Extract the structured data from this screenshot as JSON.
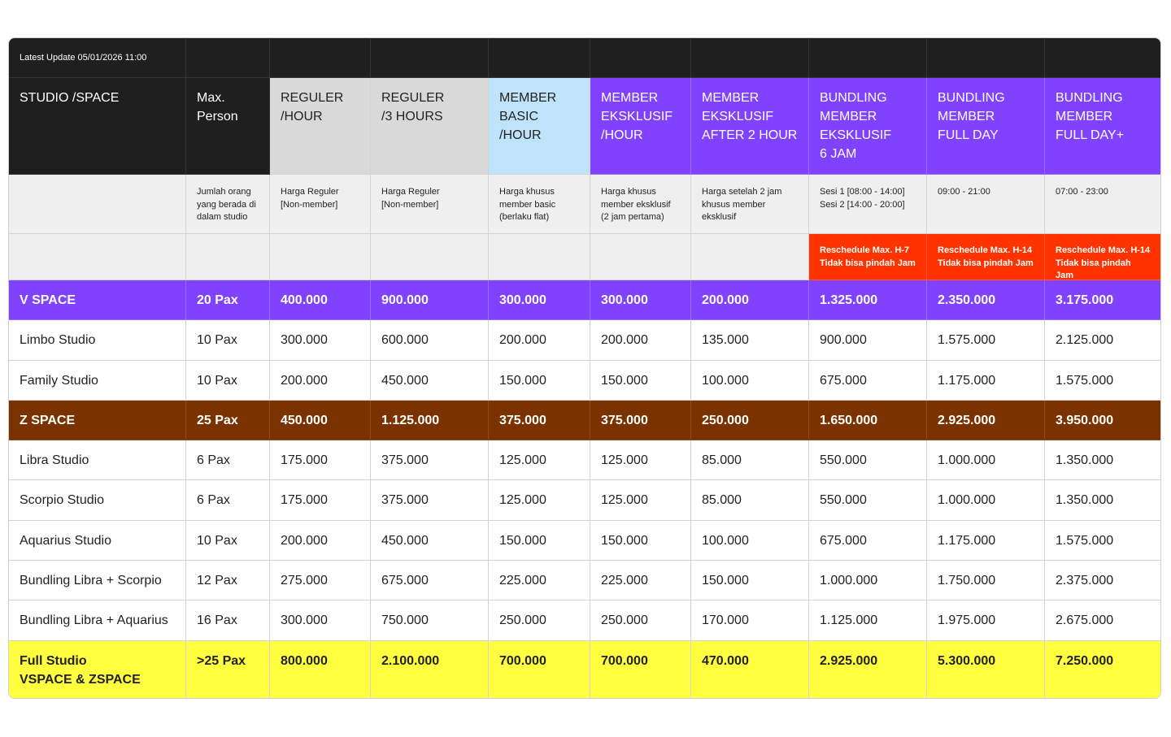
{
  "update": "Latest  Update 05/01/2026 11:00",
  "table": {
    "header": [
      "STUDIO /SPACE",
      "Max.\nPerson",
      "REGULER\n/HOUR",
      "REGULER\n/3 HOURS",
      "MEMBER\nBASIC\n/HOUR",
      "MEMBER\nEKSKLUSIF\n/HOUR",
      "MEMBER\nEKSKLUSIF\nAFTER 2 HOUR",
      "BUNDLING\nMEMBER\nEKSKLUSIF\n6 JAM",
      "BUNDLING\nMEMBER\nFULL DAY",
      "BUNDLING\nMEMBER\nFULL DAY+"
    ],
    "notes": [
      "Jumlah orang\nyang berada di\ndalam studio",
      "Harga Reguler\n[Non-member]",
      "Harga Reguler\n[Non-member]",
      "Harga khusus\nmember basic\n(berlaku flat)",
      "Harga khusus\nmember eksklusif\n(2 jam pertama)",
      "Harga setelah 2 jam\nkhusus member\neksklusif",
      "Sesi 1 [08:00 - 14:00]\nSesi 2 [14:00 - 20:00]",
      "09:00  - 21:00",
      "07:00  - 23:00"
    ],
    "reschedule": [
      "Reschedule Max. H-7\nTidak bisa pindah Jam",
      "Reschedule Max. H-14\nTidak bisa pindah Jam",
      "Reschedule Max. H-14\nTidak bisa pindah Jam"
    ],
    "rows": [
      [
        "V SPACE",
        "20 Pax",
        "400.000",
        "900.000",
        "300.000",
        "300.000",
        "200.000",
        "1.325.000",
        "2.350.000",
        "3.175.000"
      ],
      [
        "Limbo Studio",
        "10 Pax",
        "300.000",
        "600.000",
        "200.000",
        "200.000",
        "135.000",
        "900.000",
        "1.575.000",
        "2.125.000"
      ],
      [
        "Family Studio",
        "10 Pax",
        "200.000",
        "450.000",
        "150.000",
        "150.000",
        "100.000",
        "675.000",
        "1.175.000",
        "1.575.000"
      ],
      [
        "Z SPACE",
        "25 Pax",
        "450.000",
        "1.125.000",
        "375.000",
        "375.000",
        "250.000",
        "1.650.000",
        "2.925.000",
        "3.950.000"
      ],
      [
        "Libra Studio",
        "6 Pax",
        "175.000",
        "375.000",
        "125.000",
        "125.000",
        "85.000",
        "550.000",
        "1.000.000",
        "1.350.000"
      ],
      [
        "Scorpio Studio",
        "6 Pax",
        "175.000",
        "375.000",
        "125.000",
        "125.000",
        "85.000",
        "550.000",
        "1.000.000",
        "1.350.000"
      ],
      [
        "Aquarius Studio",
        "10 Pax",
        "200.000",
        "450.000",
        "150.000",
        "150.000",
        "100.000",
        "675.000",
        "1.175.000",
        "1.575.000"
      ],
      [
        "Bundling Libra + Scorpio",
        "12 Pax",
        "275.000",
        "675.000",
        "225.000",
        "225.000",
        "150.000",
        "1.000.000",
        "1.750.000",
        "2.375.000"
      ],
      [
        "Bundling Libra + Aquarius",
        "16 Pax",
        "300.000",
        "750.000",
        "250.000",
        "250.000",
        "170.000",
        "1.125.000",
        "1.975.000",
        "2.675.000"
      ],
      [
        "Full Studio\nVSPACE & ZSPACE",
        ">25 Pax",
        "800.000",
        "2.100.000",
        "700.000",
        "700.000",
        "470.000",
        "2.925.000",
        "5.300.000",
        "7.250.000"
      ]
    ]
  }
}
